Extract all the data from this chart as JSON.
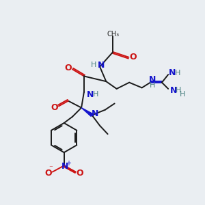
{
  "bg_color": "#eaeef2",
  "C": "#1a1a1a",
  "N": "#1414cc",
  "O": "#cc1414",
  "H": "#4a8080",
  "bond_color": "#1a1a1a",
  "fig_width": 3.0,
  "fig_height": 3.0,
  "dpi": 100
}
